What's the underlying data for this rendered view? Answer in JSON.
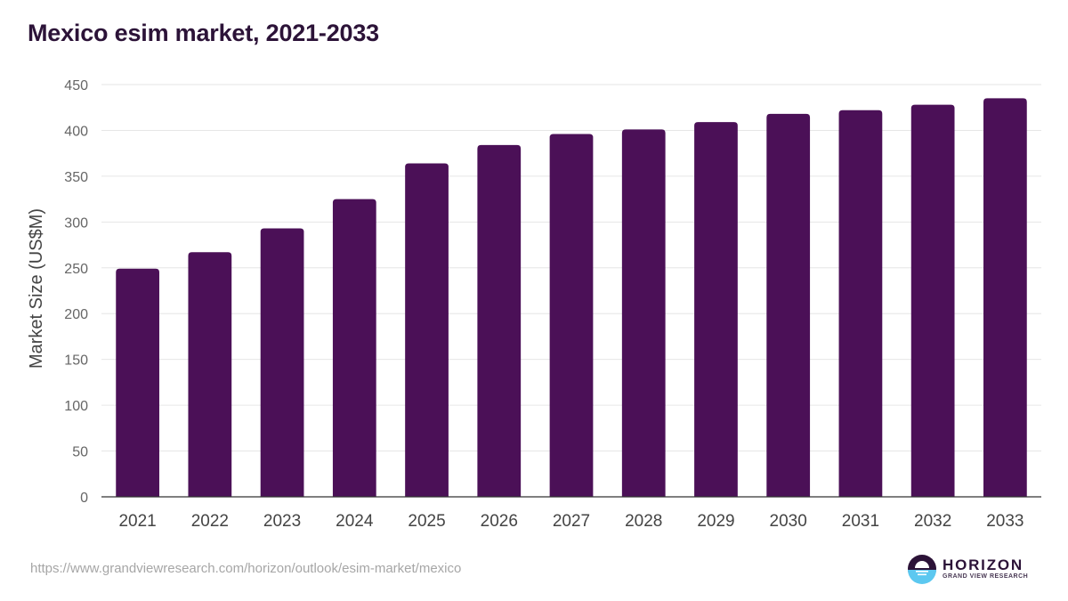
{
  "title": "Mexico esim market, 2021-2033",
  "source_url": "https://www.grandviewresearch.com/horizon/outlook/esim-market/mexico",
  "logo": {
    "name": "HORIZON",
    "tagline": "GRAND VIEW RESEARCH"
  },
  "colors": {
    "bar": "#4b1057",
    "title": "#2c1338",
    "grid": "#e6e6e6",
    "axis": "#333333",
    "logo_dark": "#2c1338",
    "logo_light": "#5cc8f0"
  },
  "chart_data": {
    "type": "bar",
    "title": "Mexico esim market, 2021-2033",
    "xlabel": "",
    "ylabel": "Market Size (US$M)",
    "categories": [
      "2021",
      "2022",
      "2023",
      "2024",
      "2025",
      "2026",
      "2027",
      "2028",
      "2029",
      "2030",
      "2031",
      "2032",
      "2033"
    ],
    "values": [
      249,
      267,
      293,
      325,
      364,
      384,
      396,
      401,
      409,
      418,
      422,
      428,
      435
    ],
    "ylim": [
      0,
      450
    ],
    "yticks": [
      0,
      50,
      100,
      150,
      200,
      250,
      300,
      350,
      400,
      450
    ],
    "grid": true,
    "legend": "none"
  }
}
